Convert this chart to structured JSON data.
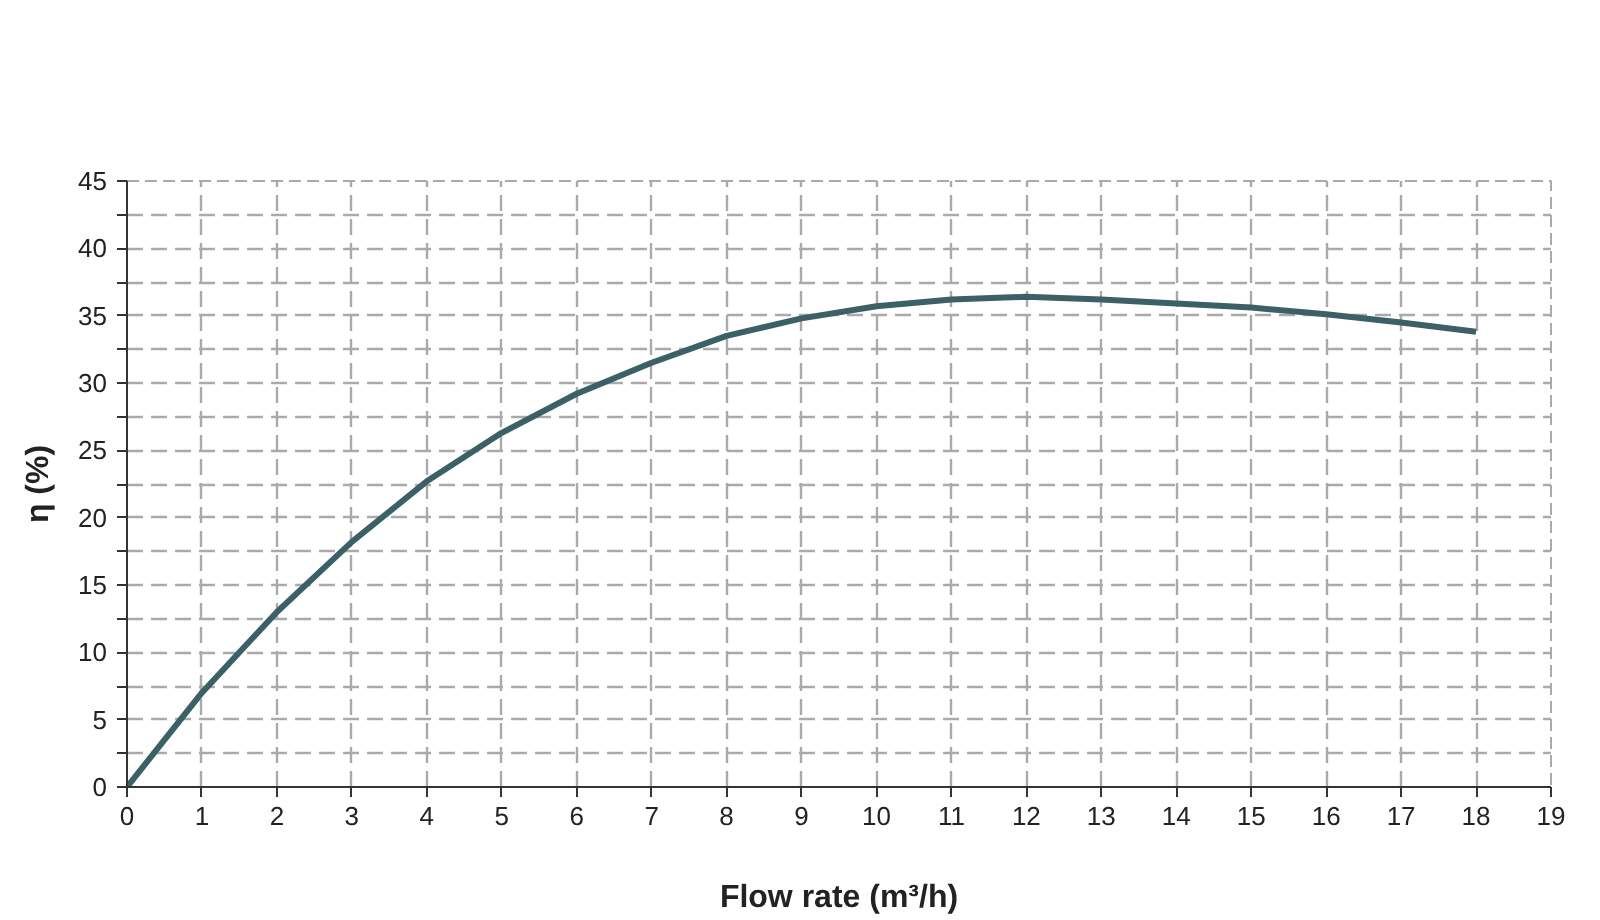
{
  "chart_data": {
    "type": "line",
    "xlabel": "Flow rate (m³/h)",
    "ylabel": "η (%)",
    "x": [
      0,
      1,
      2,
      3,
      4,
      5,
      6,
      7,
      8,
      9,
      10,
      11,
      12,
      13,
      14,
      15,
      16,
      17,
      18
    ],
    "series": [
      {
        "color": "#3b6066",
        "values": [
          0,
          7,
          13,
          18.2,
          22.7,
          26.3,
          29.2,
          31.5,
          33.5,
          34.8,
          35.7,
          36.2,
          36.4,
          36.2,
          35.9,
          35.6,
          35.1,
          34.5,
          33.8
        ]
      }
    ],
    "xlim": [
      0,
      19
    ],
    "xticks": [
      0,
      1,
      2,
      3,
      4,
      5,
      6,
      7,
      8,
      9,
      10,
      11,
      12,
      13,
      14,
      15,
      16,
      17,
      18,
      19
    ],
    "ylim": [
      0,
      45
    ],
    "yticks": [
      0,
      {
        "value": 2.5,
        "label": null
      },
      5,
      {
        "value": 7.5,
        "label": null
      },
      10,
      {
        "value": 12.5,
        "label": null
      },
      15,
      {
        "value": 17.5,
        "label": null
      },
      20,
      {
        "value": 22.5,
        "label": null
      },
      25,
      {
        "value": 27.5,
        "label": null
      },
      30,
      {
        "value": 32.5,
        "label": null
      },
      35,
      {
        "value": 37.5,
        "label": null
      },
      40,
      {
        "value": 42.5,
        "label": null
      },
      45
    ],
    "grid": true,
    "marker": "none",
    "line_style": "solid"
  }
}
